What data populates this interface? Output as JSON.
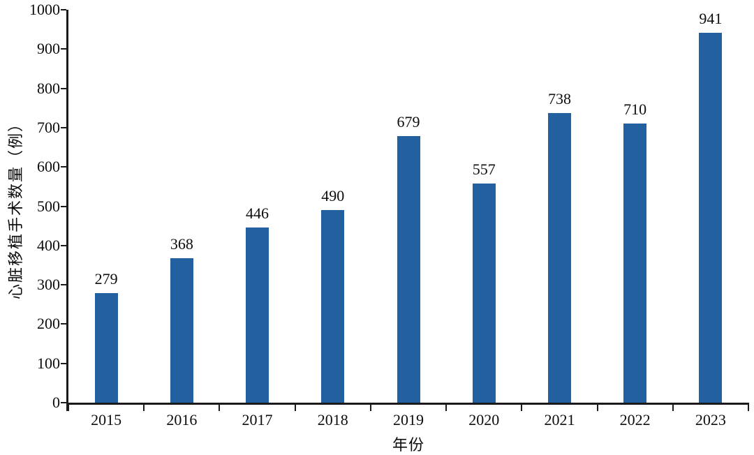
{
  "chart_data": {
    "type": "bar",
    "title": "",
    "categories": [
      "2015",
      "2016",
      "2017",
      "2018",
      "2019",
      "2020",
      "2021",
      "2022",
      "2023"
    ],
    "values": [
      279,
      368,
      446,
      490,
      679,
      557,
      738,
      710,
      941
    ],
    "xlabel": "年份",
    "ylabel": "心脏移植手术数量（例）",
    "ylim": [
      0,
      1000
    ],
    "yticks": [
      0,
      100,
      200,
      300,
      400,
      500,
      600,
      700,
      800,
      900,
      1000
    ],
    "bar_color": "#23609F",
    "axis_color": "#1a1a1a",
    "text_color": "#0d0d0d",
    "background_color": "#ffffff",
    "grid": false,
    "legend_position": "none",
    "data_labels_shown": true
  }
}
